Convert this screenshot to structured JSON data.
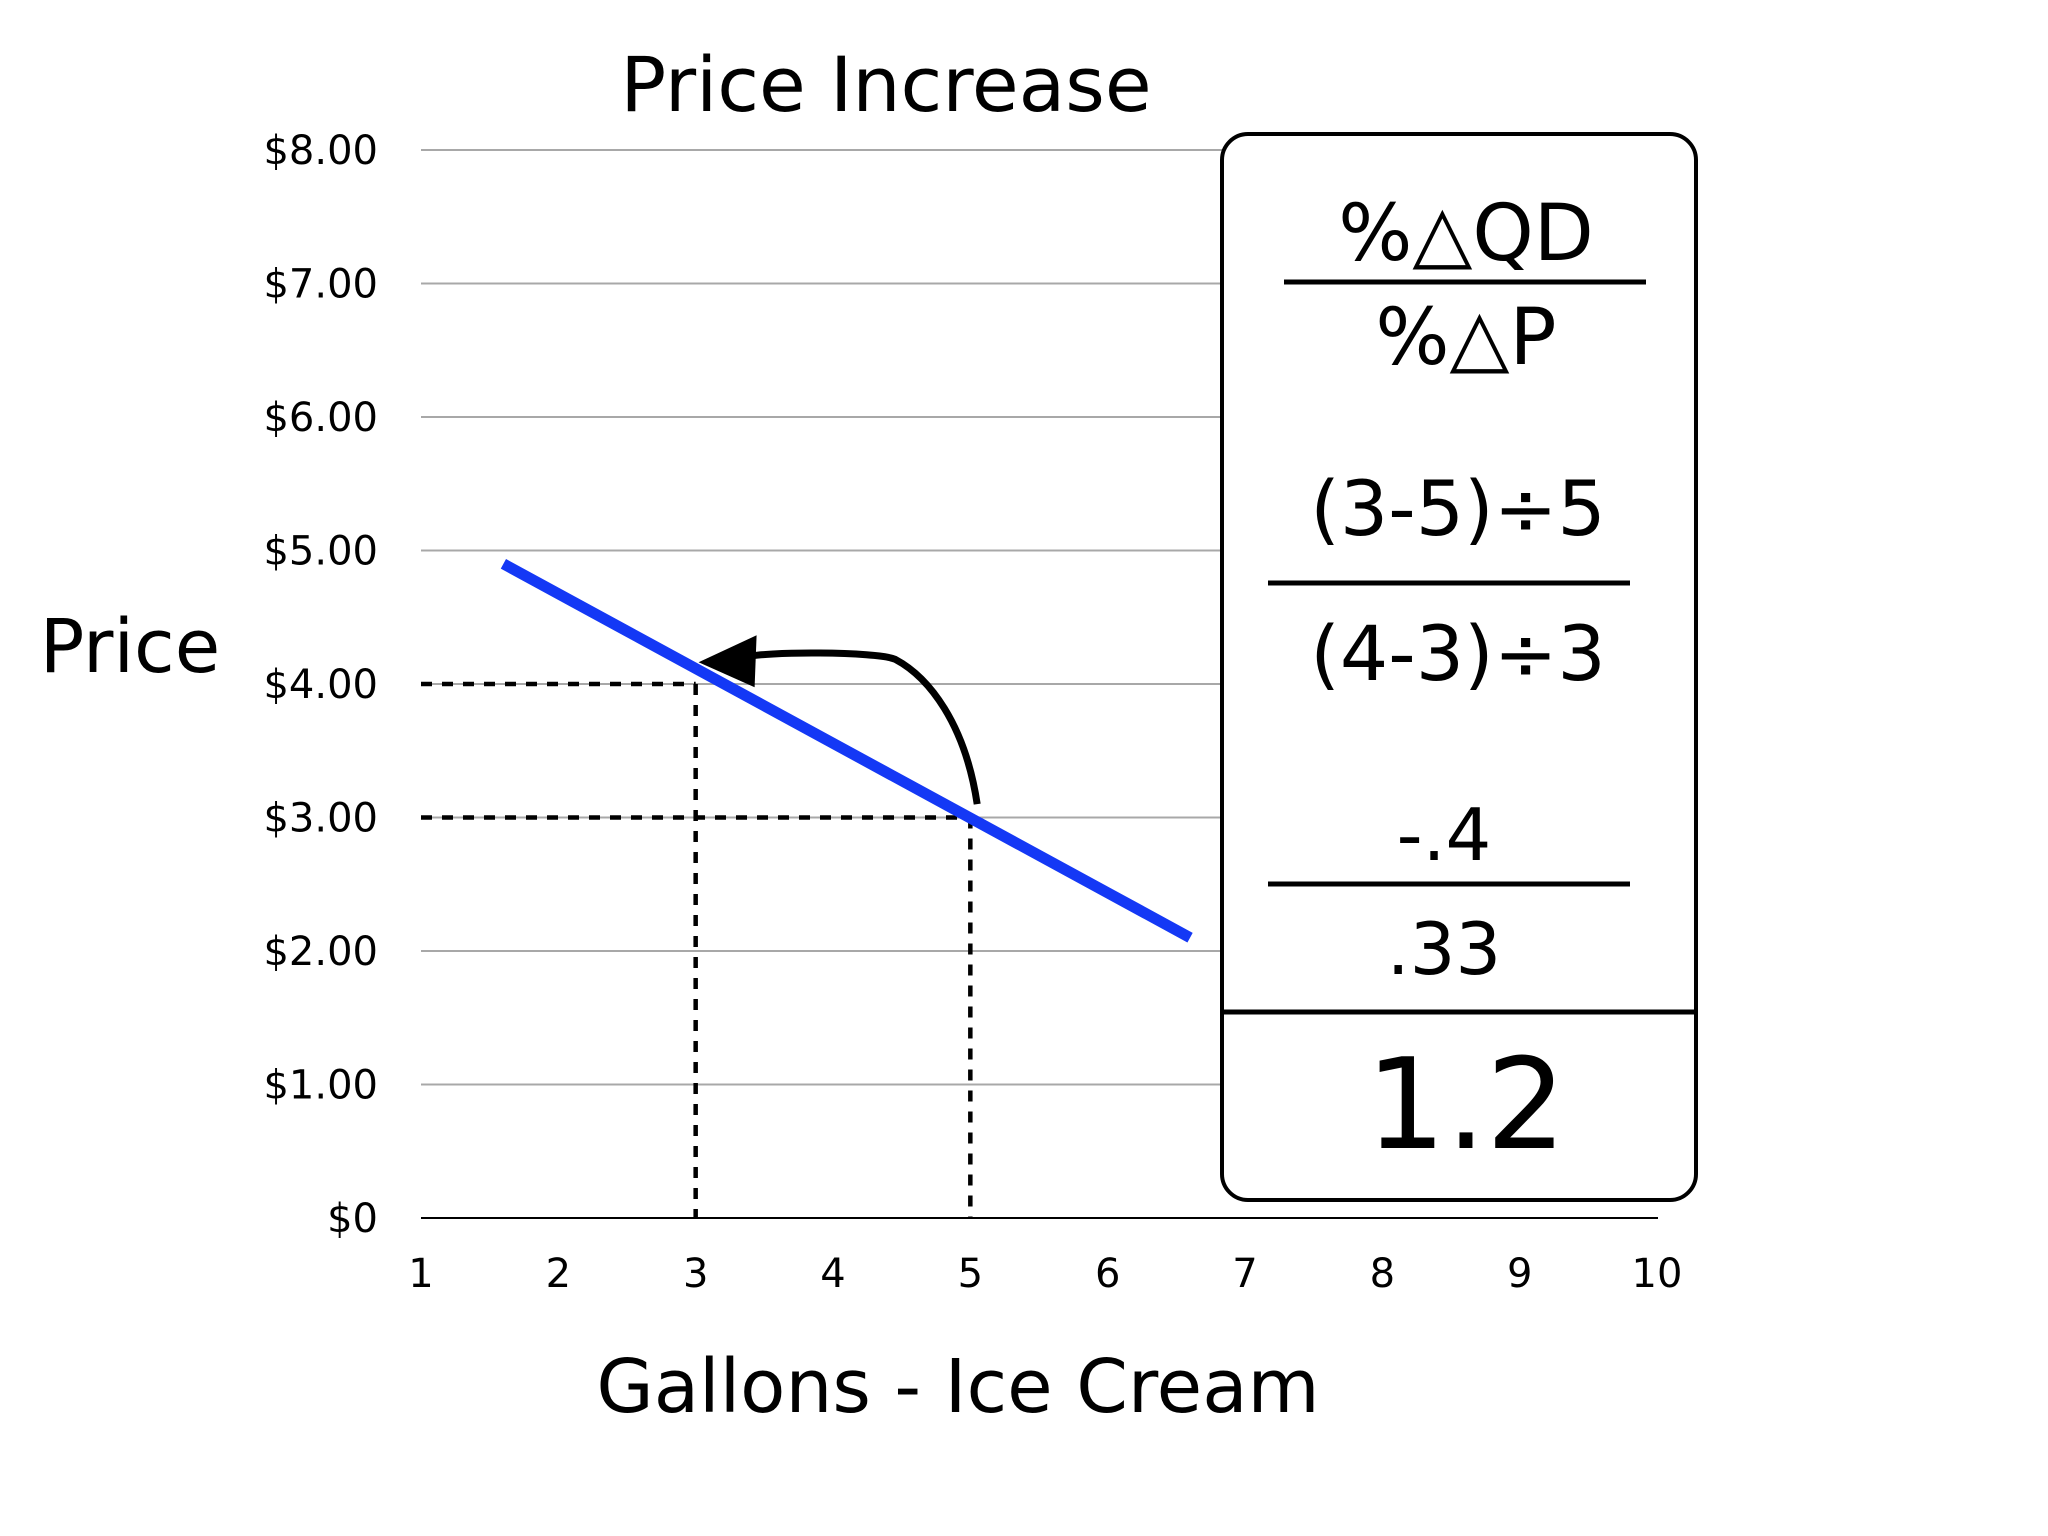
{
  "chart_data": {
    "type": "line",
    "title": "Price Increase",
    "xlabel": "Gallons - Ice Cream",
    "ylabel": "Price",
    "x_ticks": [
      "1",
      "2",
      "3",
      "4",
      "5",
      "6",
      "7",
      "8",
      "9",
      "10"
    ],
    "y_ticks": [
      "$0",
      "$1.00",
      "$2.00",
      "$3.00",
      "$4.00",
      "$5.00",
      "$6.00",
      "$7.00",
      "$8.00"
    ],
    "xlim": [
      1,
      10
    ],
    "ylim": [
      0,
      8
    ],
    "grid": "horizontal",
    "series": [
      {
        "color": "#1438f5",
        "points": [
          [
            1.6,
            4.9
          ],
          [
            6.6,
            2.1
          ]
        ]
      }
    ],
    "reference_points": [
      {
        "x": 3,
        "y": 4.0
      },
      {
        "x": 5,
        "y": 3.0
      }
    ],
    "annotation_arrow": {
      "from": [
        5.05,
        3.1
      ],
      "to": [
        3.4,
        4.2
      ]
    }
  },
  "formula_panel": {
    "definition_numerator": "%△QD",
    "definition_denominator": "%△P",
    "calc_numerator": "(3-5)÷5",
    "calc_denominator": "(4-3)÷3",
    "value_numerator": "-.4",
    "value_denominator": ".33",
    "result": "1.2"
  }
}
